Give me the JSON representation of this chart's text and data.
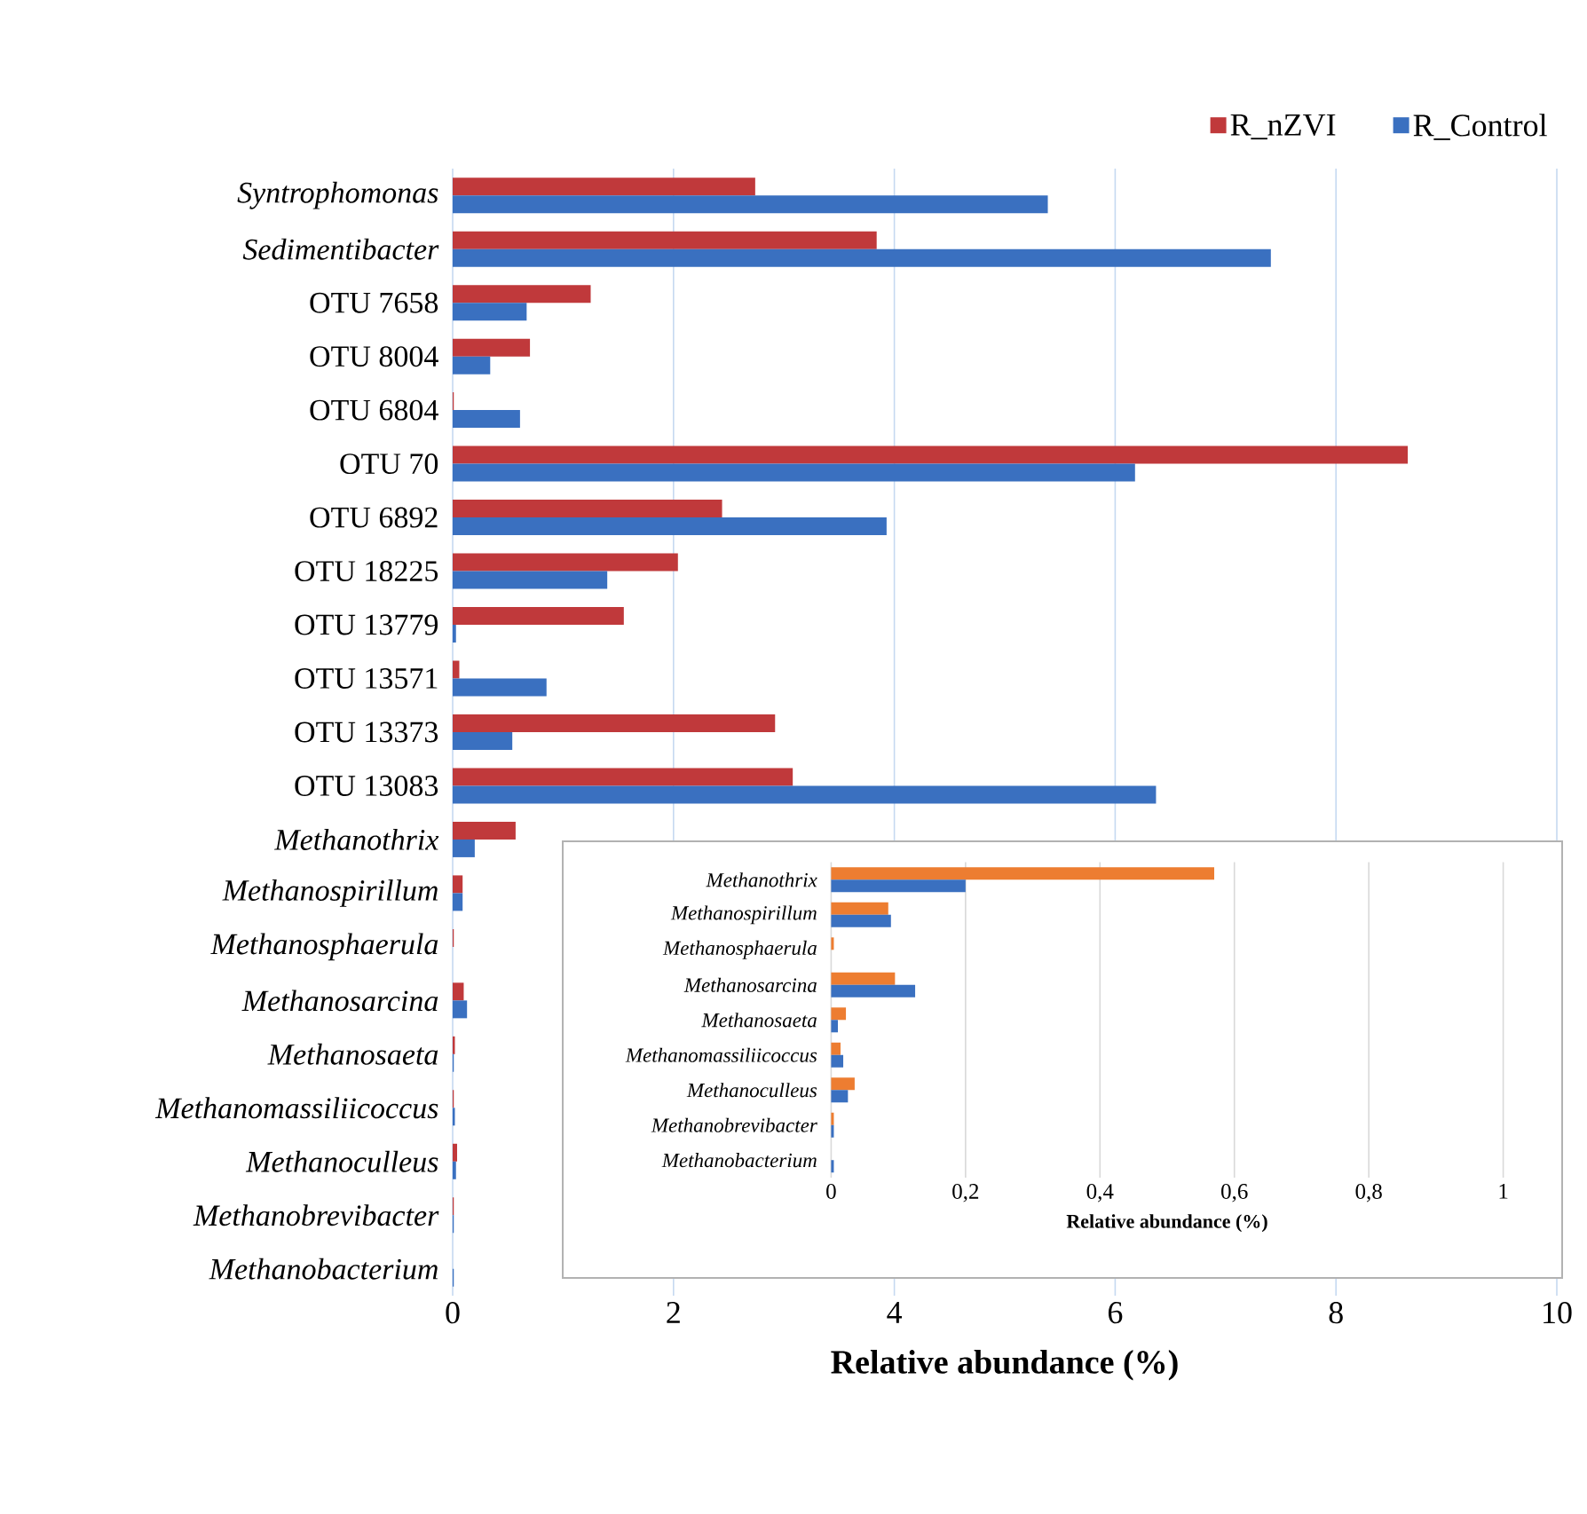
{
  "chart_data": [
    {
      "type": "bar",
      "orientation": "horizontal",
      "xlabel": "Relative abundance (%)",
      "xlim": [
        0,
        10
      ],
      "xticks": [
        0,
        2,
        4,
        6,
        8,
        10
      ],
      "grid": "x",
      "legend": "top right",
      "categories": [
        "*Syntrophomonas*",
        "*Sedimentibacter*",
        "OTU 7658",
        "OTU 8004",
        "OTU 6804",
        "OTU 70",
        "OTU 6892",
        "OTU 18225",
        "OTU 13779",
        "OTU 13571",
        "OTU 13373",
        "OTU 13083",
        "*Methanothrix*",
        "*Methanospirillum*",
        "*Methanosphaerula*",
        "*Methanosarcina*",
        "*Methanosaeta*",
        "*Methanomassiliicoccus*",
        "*Methanoculleus*",
        "*Methanobrevibacter*",
        "*Methanobacterium*"
      ],
      "series": [
        {
          "name": "R_nZVI",
          "color": "#c0393b",
          "values": [
            2.74,
            3.84,
            1.25,
            0.7,
            0.01,
            8.65,
            2.44,
            2.04,
            1.55,
            0.06,
            2.92,
            3.08,
            0.57,
            0.09,
            0.01,
            0.1,
            0.02,
            0.01,
            0.04,
            0.01,
            0
          ]
        },
        {
          "name": "R_Control",
          "color": "#3a70c0",
          "values": [
            5.39,
            7.41,
            0.67,
            0.34,
            0.61,
            6.18,
            3.93,
            1.4,
            0.03,
            0.85,
            0.54,
            6.37,
            0.2,
            0.09,
            0,
            0.13,
            0.01,
            0.02,
            0.03,
            0.01,
            0.01
          ]
        }
      ]
    },
    {
      "type": "bar",
      "orientation": "horizontal",
      "xlabel": "Relative abundance (%)",
      "xlim": [
        0,
        1
      ],
      "xticks": [
        0,
        {
          "value": 0.2,
          "label": "0,2"
        },
        {
          "value": 0.4,
          "label": "0,4"
        },
        {
          "value": 0.6,
          "label": "0,6"
        },
        {
          "value": 0.8,
          "label": "0,8"
        },
        1
      ],
      "grid": "x",
      "categories": [
        "Methanothrix",
        "Methanospirillum",
        "Methanosphaerula",
        "Methanosarcina",
        "Methanosaeta",
        "Methanomassiliicoccus",
        "Methanoculleus",
        "Methanobrevibacter",
        "Methanobacterium"
      ],
      "series": [
        {
          "color": "#ed7d31",
          "values": [
            0.57,
            0.085,
            0.004,
            0.095,
            0.022,
            0.014,
            0.035,
            0.004,
            0
          ]
        },
        {
          "color": "#3a70c0",
          "values": [
            0.2,
            0.089,
            0,
            0.125,
            0.01,
            0.018,
            0.025,
            0.004,
            0.004
          ]
        }
      ]
    }
  ]
}
